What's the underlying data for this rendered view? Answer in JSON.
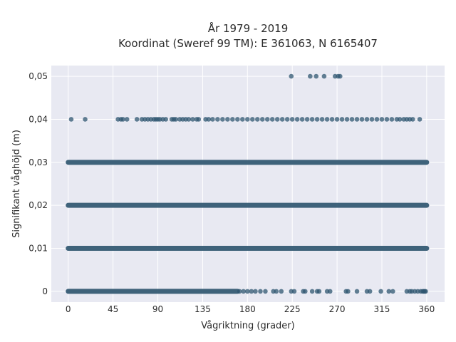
{
  "chart_data": {
    "type": "scatter",
    "title": "År 1979 - 2019",
    "subtitle": "Koordinat (Sweref 99 TM): E 361063, N 6165407",
    "xlabel": "Vågriktning (grader)",
    "ylabel": "Signifikant våghöjd (m)",
    "xlim": [
      -17,
      378
    ],
    "ylim": [
      -0.0025,
      0.0525
    ],
    "xticks": [
      0,
      45,
      90,
      135,
      180,
      225,
      270,
      315,
      360
    ],
    "xtick_labels": [
      "0",
      "45",
      "90",
      "135",
      "180",
      "225",
      "270",
      "315",
      "360"
    ],
    "yticks": [
      0,
      0.01,
      0.02,
      0.03,
      0.04,
      0.05
    ],
    "ytick_labels": [
      "0",
      "0,01",
      "0,02",
      "0,03",
      "0,04",
      "0,05"
    ],
    "grid": true,
    "marker_color": "#2f5670",
    "background": "#e8e9f2",
    "series": [
      {
        "y": 0.05,
        "x": [
          224,
          243,
          249,
          257,
          268,
          271,
          273
        ]
      },
      {
        "y": 0.04,
        "x": [
          3,
          17,
          50,
          53,
          55,
          59,
          69,
          74,
          77,
          80,
          83,
          86,
          88,
          90,
          92,
          95,
          98,
          104,
          106,
          108,
          112,
          115,
          118,
          121,
          125,
          129,
          131,
          138,
          141,
          145,
          150,
          155,
          160,
          165,
          170,
          175,
          180,
          185,
          190,
          195,
          200,
          205,
          210,
          215,
          220,
          225,
          230,
          235,
          240,
          245,
          250,
          255,
          260,
          265,
          270,
          275,
          280,
          285,
          290,
          295,
          300,
          305,
          310,
          315,
          320,
          325,
          330,
          333,
          337,
          340,
          343,
          346,
          353
        ]
      },
      {
        "y": 0.03,
        "segments": [
          [
            0,
            360
          ]
        ]
      },
      {
        "y": 0.02,
        "segments": [
          [
            0,
            360
          ]
        ]
      },
      {
        "y": 0.01,
        "segments": [
          [
            0,
            360
          ]
        ]
      },
      {
        "y": 0,
        "segments": [
          [
            0,
            170
          ]
        ],
        "x": [
          172,
          176,
          180,
          184,
          188,
          193,
          198,
          206,
          209,
          214,
          224,
          227,
          236,
          238,
          245,
          250,
          252,
          260,
          263,
          279,
          281,
          290,
          300,
          303,
          314,
          322,
          326,
          340,
          343,
          345,
          348,
          351,
          354,
          356,
          357,
          358,
          359
        ]
      }
    ]
  }
}
